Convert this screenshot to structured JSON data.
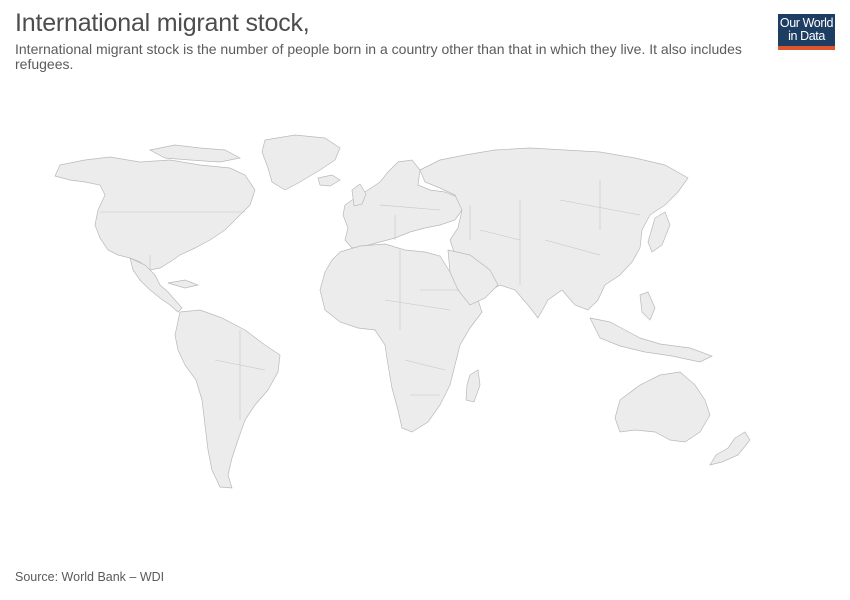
{
  "header": {
    "title": "International migrant stock,",
    "subtitle": "International migrant stock is the number of people born in a country other than that in which they live. It also includes refugees."
  },
  "logo": {
    "line1": "Our World",
    "line2": "in Data",
    "background_color": "#1d3d63",
    "accent_color": "#e0552b"
  },
  "map": {
    "land_color": "#ececec",
    "border_color": "#b9b9b9",
    "data_shown": false
  },
  "footer": {
    "source": "Source: World Bank – WDI"
  }
}
